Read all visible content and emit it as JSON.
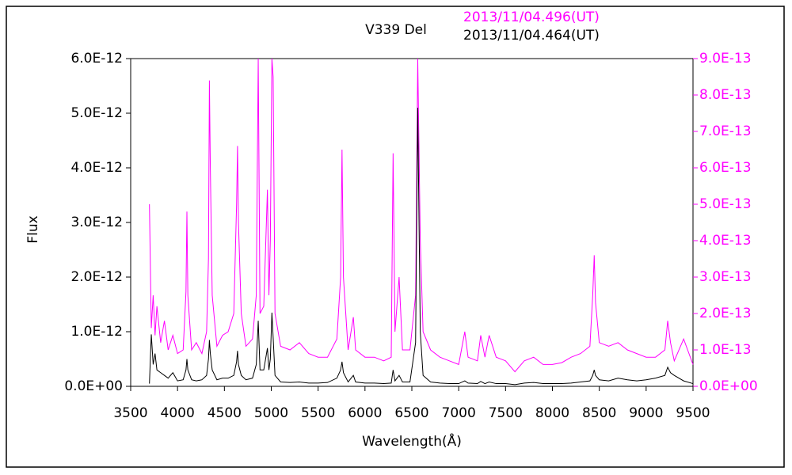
{
  "chart_data": {
    "type": "line",
    "title": "V339 Del",
    "x_label": "Wavelength(Å)",
    "y_label": "Flux",
    "xlim": [
      3500,
      9500
    ],
    "xticks": [
      3500,
      4000,
      4500,
      5000,
      5500,
      6000,
      6500,
      7000,
      7500,
      8000,
      8500,
      9000,
      9500
    ],
    "ylim": [
      0,
      6e-12
    ],
    "yticks": [
      {
        "value": 0,
        "label": "0.0E+00"
      },
      {
        "value": 1e-12,
        "label": "1.0E-12"
      },
      {
        "value": 2e-12,
        "label": "2.0E-12"
      },
      {
        "value": 3e-12,
        "label": "3.0E-12"
      },
      {
        "value": 4e-12,
        "label": "4.0E-12"
      },
      {
        "value": 5e-12,
        "label": "5.0E-12"
      },
      {
        "value": 6e-12,
        "label": "6.0E-12"
      }
    ],
    "y2lim": [
      0,
      9e-13
    ],
    "y2ticks": [
      {
        "value": 0,
        "label": "0.0E+00"
      },
      {
        "value": 1e-13,
        "label": "1.0E-13"
      },
      {
        "value": 2e-13,
        "label": "2.0E-13"
      },
      {
        "value": 3e-13,
        "label": "3.0E-13"
      },
      {
        "value": 4e-13,
        "label": "4.0E-13"
      },
      {
        "value": 5e-13,
        "label": "5.0E-13"
      },
      {
        "value": 6e-13,
        "label": "6.0E-13"
      },
      {
        "value": 7e-13,
        "label": "7.0E-13"
      },
      {
        "value": 8e-13,
        "label": "8.0E-13"
      },
      {
        "value": 9e-13,
        "label": "9.0E-13"
      }
    ],
    "x": [
      3700,
      3720,
      3740,
      3760,
      3780,
      3820,
      3860,
      3900,
      3950,
      4000,
      4060,
      4090,
      4100,
      4110,
      4150,
      4200,
      4260,
      4310,
      4330,
      4340,
      4350,
      4370,
      4420,
      4480,
      4540,
      4600,
      4630,
      4640,
      4650,
      4680,
      4730,
      4800,
      4840,
      4861,
      4880,
      4920,
      4959,
      4975,
      4990,
      5007,
      5020,
      5040,
      5100,
      5200,
      5300,
      5400,
      5500,
      5600,
      5700,
      5740,
      5755,
      5770,
      5820,
      5876,
      5900,
      6000,
      6100,
      6200,
      6280,
      6300,
      6320,
      6364,
      6400,
      6480,
      6540,
      6563,
      6590,
      6620,
      6700,
      6800,
      6900,
      7000,
      7065,
      7100,
      7200,
      7235,
      7280,
      7325,
      7400,
      7500,
      7600,
      7700,
      7800,
      7900,
      8000,
      8100,
      8200,
      8300,
      8400,
      8430,
      8446,
      8460,
      8500,
      8600,
      8700,
      8800,
      8900,
      9000,
      9100,
      9200,
      9230,
      9260,
      9300,
      9400,
      9500
    ],
    "series": [
      {
        "name": "2013/11/04.496(UT)",
        "color": "#ff00ff",
        "axis": "y2",
        "values": [
          5e-13,
          1.6e-13,
          2.5e-13,
          1.4e-13,
          2.2e-13,
          1.2e-13,
          1.8e-13,
          1e-13,
          1.4e-13,
          9e-14,
          1e-13,
          2.6e-13,
          4.8e-13,
          2.5e-13,
          1e-13,
          1.2e-13,
          9e-14,
          1.5e-13,
          3.5e-13,
          8.4e-13,
          6e-13,
          2.5e-13,
          1.1e-13,
          1.4e-13,
          1.5e-13,
          2e-13,
          5e-13,
          6.6e-13,
          4.5e-13,
          2e-13,
          1.1e-13,
          1.3e-13,
          2.5e-13,
          9e-13,
          2e-13,
          2.2e-13,
          5.4e-13,
          2.5e-13,
          4e-13,
          9e-13,
          8.5e-13,
          2e-13,
          1.1e-13,
          1e-13,
          1.2e-13,
          9e-14,
          8e-14,
          8e-14,
          1.3e-13,
          3e-13,
          6.5e-13,
          3e-13,
          1e-13,
          1.9e-13,
          1e-13,
          8e-14,
          8e-14,
          7e-14,
          8e-14,
          6.4e-13,
          1.5e-13,
          3e-13,
          1e-13,
          1e-13,
          2.5e-13,
          9e-13,
          4e-13,
          1.5e-13,
          1e-13,
          8e-14,
          7e-14,
          6e-14,
          1.5e-13,
          8e-14,
          7e-14,
          1.4e-13,
          8e-14,
          1.4e-13,
          8e-14,
          7e-14,
          4e-14,
          7e-14,
          8e-14,
          6e-14,
          6e-14,
          6.5e-14,
          8e-14,
          9e-14,
          1.1e-13,
          2.5e-13,
          3.6e-13,
          2.3e-13,
          1.2e-13,
          1.1e-13,
          1.2e-13,
          1e-13,
          9e-14,
          8e-14,
          8e-14,
          1e-13,
          1.8e-13,
          1.2e-13,
          7e-14,
          1.3e-13,
          6e-14
        ]
      },
      {
        "name": "2013/11/04.464(UT)",
        "color": "#000000",
        "values": [
          5e-14,
          9.5e-13,
          4e-13,
          6e-13,
          3e-13,
          2.5e-13,
          2e-13,
          1.5e-13,
          2.5e-13,
          1e-13,
          1.2e-13,
          3e-13,
          5e-13,
          3e-13,
          1.2e-13,
          1e-13,
          1.2e-13,
          2e-13,
          5e-13,
          8.5e-13,
          6e-13,
          3e-13,
          1.2e-13,
          1.5e-13,
          1.5e-13,
          2e-13,
          4.5e-13,
          6.5e-13,
          4e-13,
          2e-13,
          1.2e-13,
          1.5e-13,
          4e-13,
          1.2e-12,
          3e-13,
          3e-13,
          7e-13,
          3e-13,
          5e-13,
          1.35e-12,
          9e-13,
          2e-13,
          8e-14,
          7e-14,
          8e-14,
          6e-14,
          6e-14,
          7e-14,
          1.5e-13,
          3e-13,
          4.5e-13,
          2.5e-13,
          8e-14,
          2e-13,
          8e-14,
          6e-14,
          6e-14,
          5e-14,
          6e-14,
          3e-13,
          1e-13,
          2e-13,
          8e-14,
          8e-14,
          8e-13,
          5.1e-12,
          1e-12,
          2e-13,
          8e-14,
          6e-14,
          5e-14,
          5e-14,
          1e-13,
          6e-14,
          5e-14,
          9e-14,
          5e-14,
          8e-14,
          5e-14,
          5e-14,
          3e-14,
          6e-14,
          7e-14,
          5e-14,
          5e-14,
          5e-14,
          6e-14,
          8e-14,
          1e-13,
          2e-13,
          3e-13,
          2e-13,
          1.2e-13,
          1e-13,
          1.5e-13,
          1.2e-13,
          1e-13,
          1.2e-13,
          1.5e-13,
          2e-13,
          3.5e-13,
          2.5e-13,
          2e-13,
          1e-13,
          5e-14
        ]
      }
    ]
  }
}
